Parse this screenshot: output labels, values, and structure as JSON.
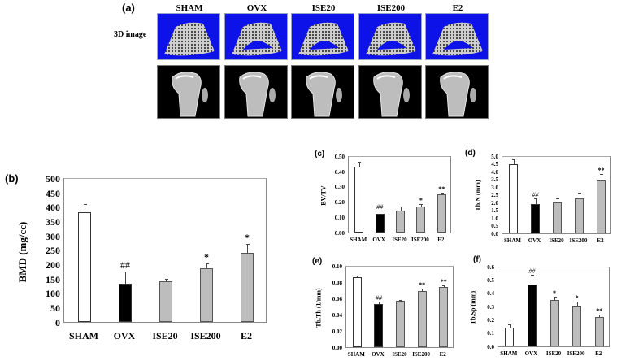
{
  "figure": {
    "panel_a": {
      "label": "(a)",
      "row_label": "3D image",
      "columns": [
        "SHAM",
        "OVX",
        "ISE20",
        "ISE200",
        "E2"
      ],
      "top_row_bg": "#0d12e8",
      "bottom_row_bg": "#000000"
    }
  },
  "chart_data": [
    {
      "panel": "(b)",
      "type": "bar",
      "title": "",
      "xlabel": "",
      "ylabel": "BMD (mg/cc)",
      "categories": [
        "SHAM",
        "OVX",
        "ISE20",
        "ISE200",
        "E2"
      ],
      "values": [
        382,
        133,
        140,
        187,
        240
      ],
      "errors": [
        25,
        40,
        8,
        13,
        28
      ],
      "annotations": [
        "",
        "##",
        "",
        "*",
        "*"
      ],
      "bar_colors": [
        "#ffffff",
        "#000000",
        "#bdbdbd",
        "#bdbdbd",
        "#bdbdbd"
      ],
      "ylim": [
        0,
        500
      ],
      "yticks": [
        "0",
        "50",
        "100",
        "150",
        "200",
        "250",
        "300",
        "350",
        "400",
        "450",
        "500"
      ]
    },
    {
      "panel": "(c)",
      "type": "bar",
      "ylabel": "BV/TV",
      "categories": [
        "SHAM",
        "OVX",
        "ISE20",
        "ISE200",
        "E2"
      ],
      "values": [
        0.43,
        0.12,
        0.145,
        0.17,
        0.25
      ],
      "errors": [
        0.03,
        0.02,
        0.02,
        0.01,
        0.007
      ],
      "annotations": [
        "",
        "##",
        "",
        "*",
        "**"
      ],
      "bar_colors": [
        "#ffffff",
        "#000000",
        "#bdbdbd",
        "#bdbdbd",
        "#bdbdbd"
      ],
      "ylim": [
        0,
        0.5
      ],
      "yticks": [
        "0.00",
        "0.10",
        "0.20",
        "0.30",
        "0.40",
        "0.50"
      ]
    },
    {
      "panel": "(d)",
      "type": "bar",
      "ylabel": "Tb.N (mm)",
      "categories": [
        "SHAM",
        "OVX",
        "ISE20",
        "ISE200",
        "E2"
      ],
      "values": [
        4.5,
        1.9,
        2.0,
        2.25,
        3.4
      ],
      "errors": [
        0.25,
        0.3,
        0.2,
        0.35,
        0.4
      ],
      "annotations": [
        "",
        "##",
        "",
        "",
        "**"
      ],
      "bar_colors": [
        "#ffffff",
        "#000000",
        "#bdbdbd",
        "#bdbdbd",
        "#bdbdbd"
      ],
      "ylim": [
        0,
        5.0
      ],
      "yticks": [
        "0.0",
        "0.5",
        "1.0",
        "1.5",
        "2.0",
        "2.5",
        "3.0",
        "3.5",
        "4.0",
        "4.5",
        "5.0"
      ]
    },
    {
      "panel": "(e)",
      "type": "bar",
      "ylabel": "Tb.Th (1/mm)",
      "categories": [
        "SHAM",
        "OVX",
        "ISE20",
        "ISE200",
        "E2"
      ],
      "values": [
        0.086,
        0.053,
        0.057,
        0.069,
        0.074
      ],
      "errors": [
        0.001,
        0.002,
        0.0005,
        0.002,
        0.001
      ],
      "annotations": [
        "",
        "##",
        "",
        "**",
        "**"
      ],
      "bar_colors": [
        "#ffffff",
        "#000000",
        "#bdbdbd",
        "#bdbdbd",
        "#bdbdbd"
      ],
      "ylim": [
        0,
        0.1
      ],
      "yticks": [
        "0.00",
        "0.02",
        "0.04",
        "0.06",
        "0.08",
        "0.10"
      ]
    },
    {
      "panel": "(f)",
      "type": "bar",
      "ylabel": "Tb.Sp (mm)",
      "categories": [
        "SHAM",
        "OVX",
        "ISE20",
        "ISE200",
        "E2"
      ],
      "values": [
        0.14,
        0.465,
        0.35,
        0.305,
        0.22
      ],
      "errors": [
        0.02,
        0.07,
        0.02,
        0.025,
        0.012
      ],
      "annotations": [
        "",
        "##",
        "*",
        "*",
        "**"
      ],
      "bar_colors": [
        "#ffffff",
        "#000000",
        "#bdbdbd",
        "#bdbdbd",
        "#bdbdbd"
      ],
      "ylim": [
        0,
        0.6
      ],
      "yticks": [
        "0.0",
        "0.1",
        "0.2",
        "0.3",
        "0.4",
        "0.5",
        "0.6"
      ]
    }
  ]
}
